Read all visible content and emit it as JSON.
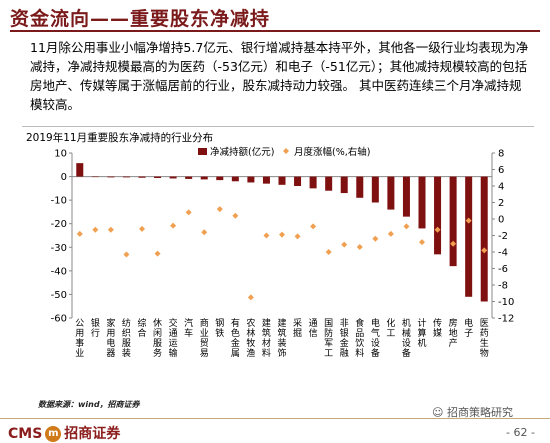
{
  "header": {
    "title": "资金流向——重要股东净减持"
  },
  "body": {
    "paragraph": "11月除公用事业小幅净增持5.7亿元、银行增减持基本持平外，其他各一级行业均表现为净减持，净减持规模最高的为医药（-53亿元）和电子（-51亿元）；其他减持规模较高的包括房地产、传媒等属于涨幅居前的行业，股东减持动力较强。 其中医药连续三个月净减持规模较高。"
  },
  "chart_data": {
    "type": "bar",
    "title": "2019年11月重要股东净减持的行业分布",
    "categories": [
      "公用事业",
      "银行",
      "家用电器",
      "纺织服装",
      "综合",
      "休闲服务",
      "交通运输",
      "汽车",
      "商业贸易",
      "钢铁",
      "有色金属",
      "农林牧渔",
      "建筑材料",
      "建筑装饰",
      "采掘",
      "通信",
      "国防军工",
      "非银金融",
      "食品饮料",
      "电气设备",
      "化工",
      "机械设备",
      "计算机",
      "传媒",
      "房地产",
      "电子",
      "医药生物"
    ],
    "series": [
      {
        "name": "净减持额(亿元)",
        "axis": "left",
        "color": "#7f1010",
        "values": [
          5.7,
          0,
          -0.2,
          -0.3,
          -0.5,
          -0.6,
          -0.8,
          -1,
          -1.2,
          -1.5,
          -2,
          -2.5,
          -3,
          -3.5,
          -4,
          -5,
          -6,
          -7,
          -9,
          -11,
          -14,
          -17,
          -22,
          -33,
          -38,
          -51,
          -53
        ]
      },
      {
        "name": "月度涨幅(%,右轴)",
        "axis": "right",
        "color": "#f0a050",
        "values": [
          -1.8,
          -1.3,
          -1.3,
          -4.3,
          -1.2,
          -4.2,
          -0.8,
          0.8,
          -1.6,
          1.2,
          0.4,
          -9.5,
          -2,
          -1.9,
          -2.1,
          -0.9,
          -4,
          -3.1,
          -3.4,
          -2.4,
          -1.8,
          -0.9,
          -2.8,
          -1.3,
          -3,
          -0.2,
          -3.8
        ]
      }
    ],
    "ylim_left": [
      -60,
      10
    ],
    "yticks_left": [
      10,
      0,
      -10,
      -20,
      -30,
      -40,
      -50,
      -60
    ],
    "ylim_right": [
      -12,
      8
    ],
    "yticks_right": [
      8,
      6,
      4,
      2,
      0,
      -2,
      -4,
      -6,
      -8,
      -10,
      -12
    ],
    "legend_position": "top"
  },
  "footer": {
    "source": "数据来源：wind，招商证券",
    "logo_text_left": "CMS",
    "logo_badge": "m",
    "logo_text_right": "招商证券",
    "wechat": "招商策略研究",
    "page": "- 62 -"
  },
  "colors": {
    "title": "#7b1a1a",
    "bar": "#7f1010",
    "point": "#f0a050"
  }
}
